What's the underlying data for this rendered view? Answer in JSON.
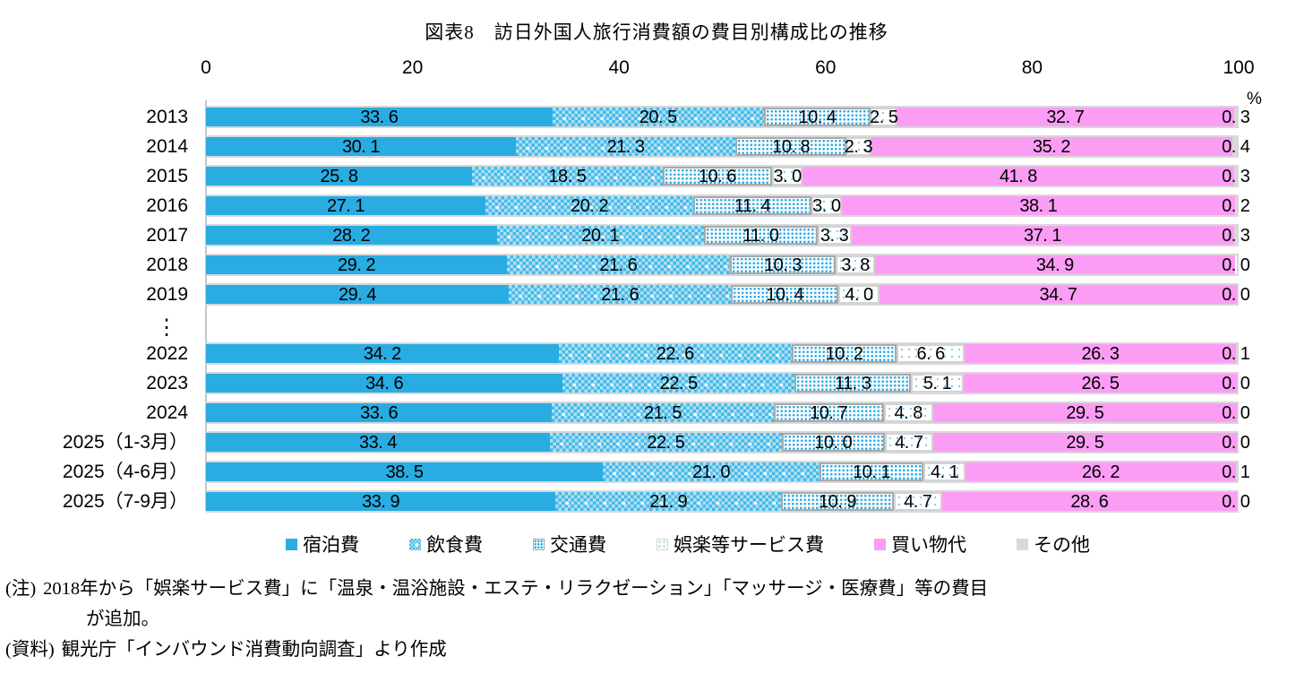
{
  "title": "図表8　訪日外国人旅行消費額の費目別構成比の推移",
  "axis": {
    "unit": "%",
    "ticks": [
      "0",
      "20",
      "40",
      "60",
      "80",
      "100"
    ]
  },
  "chart_data": {
    "type": "bar",
    "stacked": true,
    "orientation": "horizontal",
    "value_unit": "%",
    "xlim": [
      0,
      100
    ],
    "grid": false,
    "legend_position": "bottom",
    "gap_after_index": 6,
    "gap_symbol": "⋮",
    "categories": [
      "2013",
      "2014",
      "2015",
      "2016",
      "2017",
      "2018",
      "2019",
      "2022",
      "2023",
      "2024",
      "2025（1-3月）",
      "2025（4-6月）",
      "2025（7-9月）"
    ],
    "series": [
      {
        "name": "宿泊費",
        "values": [
          33.6,
          30.1,
          25.8,
          27.1,
          28.2,
          29.2,
          29.4,
          34.2,
          34.6,
          33.6,
          33.4,
          38.5,
          33.9
        ]
      },
      {
        "name": "飲食費",
        "values": [
          20.5,
          21.3,
          18.5,
          20.2,
          20.1,
          21.6,
          21.6,
          22.6,
          22.5,
          21.5,
          22.5,
          21.0,
          21.9
        ]
      },
      {
        "name": "交通費",
        "values": [
          10.4,
          10.8,
          10.6,
          11.4,
          11.0,
          10.3,
          10.4,
          10.2,
          11.3,
          10.7,
          10.0,
          10.1,
          10.9
        ]
      },
      {
        "name": "娯楽等サービス費",
        "values": [
          2.5,
          2.3,
          3.0,
          3.0,
          3.3,
          3.8,
          4.0,
          6.6,
          5.1,
          4.8,
          4.7,
          4.1,
          4.7
        ]
      },
      {
        "name": "買い物代",
        "values": [
          32.7,
          35.2,
          41.8,
          38.1,
          37.1,
          34.9,
          34.7,
          26.3,
          26.5,
          29.5,
          29.5,
          26.2,
          28.6
        ]
      },
      {
        "name": "その他",
        "values": [
          0.3,
          0.4,
          0.3,
          0.2,
          0.3,
          0.0,
          0.0,
          0.1,
          0.0,
          0.0,
          0.0,
          0.1,
          0.0
        ]
      }
    ]
  },
  "legend": [
    "宿泊費",
    "飲食費",
    "交通費",
    "娯楽等サービス費",
    "買い物代",
    "その他"
  ],
  "notes": {
    "note_label": "(注)",
    "note_line1": "2018年から「娯楽サービス費」に「温泉・温浴施設・エステ・リラクゼーション」「マッサージ・医療費」等の費目",
    "note_line2": "が追加。",
    "source_label": "(資料)",
    "source_text": "観光庁「インバウンド消費動向調査」より作成"
  },
  "colors": {
    "lodging_blue": "#29ACE2",
    "food_check_blue": "#45B9E7",
    "food_base_blue": "#ADE0F4",
    "transport_dot_blue": "#2FA8DE",
    "entertainment_dot_blue": "#86CFEF",
    "shopping_pink": "#FC9DF5",
    "other_gray": "#D9D9D9",
    "bar_border_gray": "#D8D8D8",
    "segment_border_gray": "#A9A9A9"
  }
}
